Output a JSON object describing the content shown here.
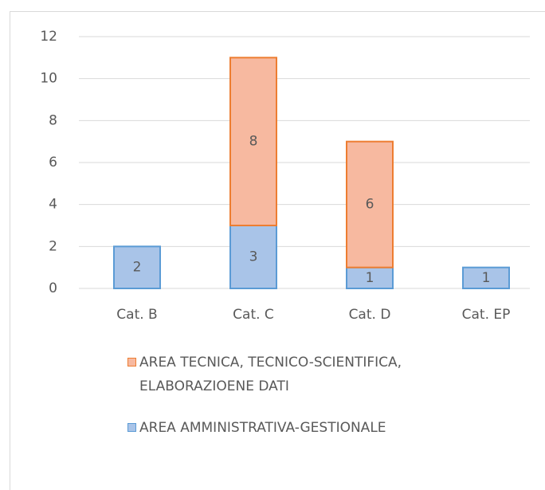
{
  "chart_data": {
    "type": "stacked_bar",
    "categories": [
      "Cat. B",
      "Cat. C",
      "Cat. D",
      "Cat. EP"
    ],
    "series": [
      {
        "name": "AREA AMMINISTRATIVA-GESTIONALE",
        "color": "#a9c4e8",
        "edge": "#5b9bd5",
        "values": [
          2,
          3,
          1,
          1
        ]
      },
      {
        "name": "AREA TECNICA, TECNICO-SCIENTIFICA, ELABORAZIOENE DATI",
        "color": "#f7b9a0",
        "edge": "#ed7d31",
        "values": [
          null,
          8,
          6,
          null
        ]
      }
    ],
    "ylim": [
      0,
      12
    ],
    "yticks": [
      0,
      2,
      4,
      6,
      8,
      10,
      12
    ],
    "grid": true,
    "legend": "bottom"
  }
}
